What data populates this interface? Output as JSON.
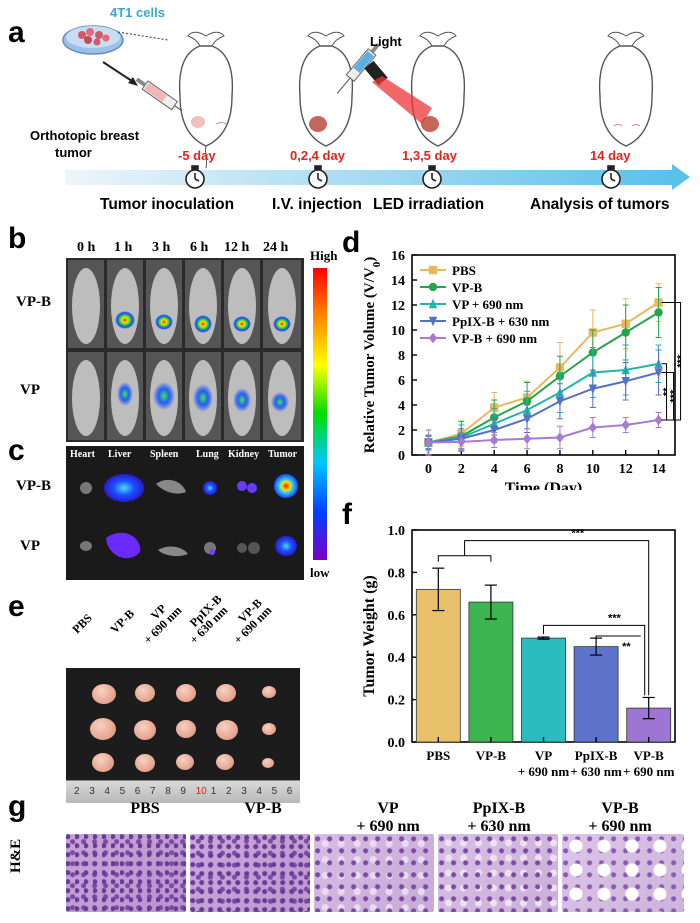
{
  "panels": {
    "a": "a",
    "b": "b",
    "c": "c",
    "d": "d",
    "e": "e",
    "f": "f",
    "g": "g"
  },
  "panel_a": {
    "cells_label": "4T1 cells",
    "tumor_label_1": "Orthotopic breast",
    "tumor_label_2": "tumor",
    "light_label": "Light",
    "days": [
      "-5 day",
      "0,2,4 day",
      "1,3,5 day",
      "14 day"
    ],
    "steps": [
      "Tumor inoculation",
      "I.V. injection",
      "LED irradiation",
      "Analysis of tumors"
    ]
  },
  "panel_b": {
    "times": [
      "0 h",
      "1 h",
      "3 h",
      "6 h",
      "12 h",
      "24 h"
    ],
    "rows": [
      "VP-B",
      "VP"
    ],
    "scale_high": "High",
    "scale_low": "low"
  },
  "panel_c": {
    "organs": [
      "Heart",
      "Liver",
      "Spleen",
      "Lung",
      "Kidney",
      "Tumor"
    ],
    "rows": [
      "VP-B",
      "VP"
    ]
  },
  "panel_e": {
    "groups": [
      "PBS",
      "VP-B",
      "VP\n+ 690 nm",
      "PpIX-B\n+ 630 nm",
      "VP-B\n+ 690 nm"
    ],
    "groups_line1": [
      "PBS",
      "VP-B",
      "VP",
      "PpIX-B",
      "VP-B"
    ],
    "groups_line2": [
      "",
      "",
      "+ 690 nm",
      "+ 630 nm",
      "+ 690 nm"
    ],
    "ruler": [
      "2",
      "3",
      "4",
      "5",
      "6",
      "7",
      "8",
      "9",
      "10",
      "1",
      "2",
      "3",
      "4",
      "5",
      "6"
    ]
  },
  "panel_g": {
    "titles_line1": [
      "PBS",
      "VP-B",
      "VP",
      "PpIX-B",
      "VP-B"
    ],
    "titles_line2": [
      "",
      "",
      "+ 690 nm",
      "+ 630 nm",
      "+ 690 nm"
    ],
    "row_label": "H&E"
  },
  "chart_data": [
    {
      "type": "line",
      "title": "",
      "xlabel": "Time (Day)",
      "ylabel": "Relative Tumor Volume (V/V",
      "ylabel_sub": "0",
      "ylabel_end": ")",
      "x": [
        0,
        2,
        4,
        6,
        8,
        10,
        12,
        14
      ],
      "xlim": [
        -1,
        15
      ],
      "ylim": [
        0,
        16
      ],
      "xticks": [
        0,
        2,
        4,
        6,
        8,
        10,
        12,
        14
      ],
      "yticks": [
        0,
        2,
        4,
        6,
        8,
        10,
        12,
        14,
        16
      ],
      "series": [
        {
          "name": "PBS",
          "color": "#e8b95a",
          "marker": "square",
          "values": [
            1,
            1.7,
            3.8,
            4.6,
            7.0,
            9.8,
            10.5,
            12.2
          ],
          "err": [
            0.5,
            1.0,
            1.2,
            1.3,
            2.0,
            1.8,
            2.0,
            1.5
          ]
        },
        {
          "name": "VP-B",
          "color": "#25a549",
          "marker": "circle",
          "values": [
            1,
            1.5,
            3.0,
            4.3,
            6.3,
            8.2,
            9.8,
            11.4
          ],
          "err": [
            0.6,
            1.2,
            1.4,
            1.5,
            1.6,
            1.8,
            2.2,
            2.0
          ]
        },
        {
          "name": "VP + 690 nm",
          "color": "#21b5ad",
          "marker": "triangle-up",
          "values": [
            1,
            1.4,
            2.5,
            3.6,
            5.0,
            6.6,
            6.8,
            7.3
          ],
          "err": [
            0.5,
            1.0,
            1.2,
            1.5,
            1.6,
            2.0,
            2.0,
            1.5
          ]
        },
        {
          "name": "PpIX-B + 630 nm",
          "color": "#5470c9",
          "marker": "triangle-down",
          "values": [
            1,
            1.3,
            2.0,
            2.9,
            4.3,
            5.3,
            5.9,
            6.6
          ],
          "err": [
            0.5,
            0.8,
            1.0,
            1.1,
            1.4,
            1.5,
            1.5,
            1.8
          ]
        },
        {
          "name": "VP-B + 690 nm",
          "color": "#a87ad5",
          "marker": "diamond",
          "values": [
            1,
            1.05,
            1.2,
            1.3,
            1.4,
            2.2,
            2.4,
            2.8
          ],
          "err": [
            1.0,
            0.7,
            0.6,
            0.8,
            0.9,
            0.8,
            0.6,
            0.6
          ]
        }
      ],
      "significance": [
        "***",
        "**",
        "***"
      ]
    },
    {
      "type": "bar",
      "title": "",
      "xlabel": "",
      "ylabel": "Tumor Weight (g)",
      "categories_line1": [
        "PBS",
        "VP-B",
        "VP",
        "PpIX-B",
        "VP-B"
      ],
      "categories_line2": [
        "",
        "",
        "+ 690 nm",
        "+ 630 nm",
        "+ 690 nm"
      ],
      "values": [
        0.72,
        0.66,
        0.49,
        0.45,
        0.16
      ],
      "err": [
        0.1,
        0.08,
        0.005,
        0.04,
        0.05
      ],
      "colors": [
        "#e8c06a",
        "#3cb550",
        "#2bbcc0",
        "#5d73cc",
        "#9d75d2"
      ],
      "ylim": [
        0,
        1.0
      ],
      "yticks": [
        "0.0",
        "0.2",
        "0.4",
        "0.6",
        "0.8",
        "1.0"
      ],
      "significance": [
        "***",
        "***",
        "**"
      ]
    }
  ]
}
